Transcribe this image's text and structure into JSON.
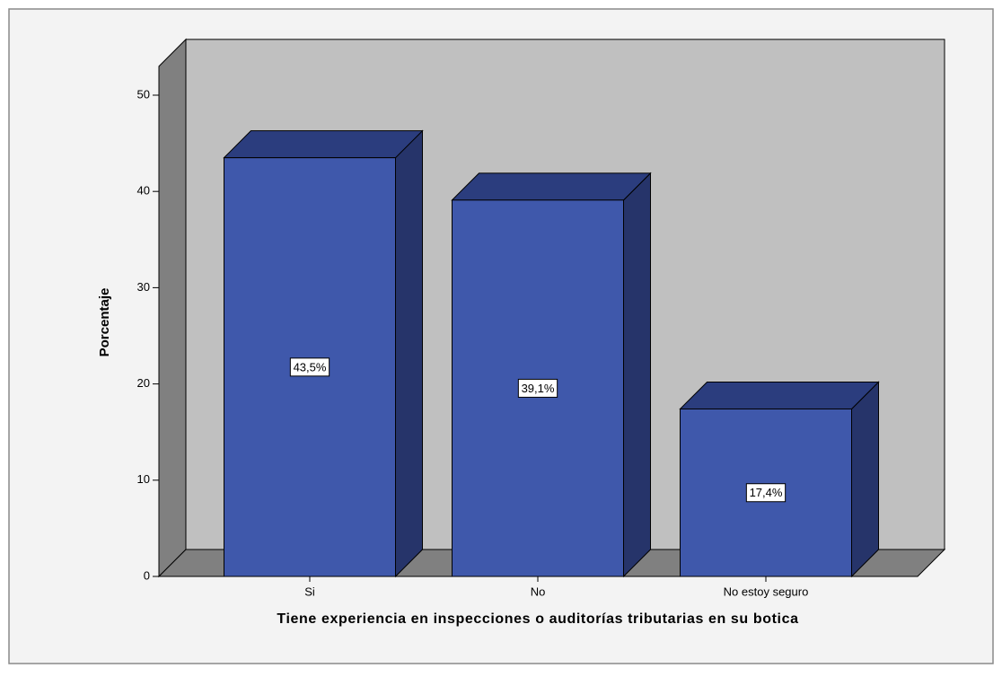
{
  "chart_data": {
    "type": "bar3d",
    "x_label": "Tiene experiencia en inspecciones o auditorías tributarias en su botica",
    "y_label": "Porcentaje",
    "categories": [
      "Si",
      "No",
      "No estoy seguro"
    ],
    "values": [
      43.5,
      39.1,
      17.4
    ],
    "value_labels": [
      "43,5%",
      "39,1%",
      "17,4%"
    ],
    "color": "#3f58ab",
    "ylim": [
      0,
      53
    ],
    "yticks": [
      0,
      10,
      20,
      30,
      40,
      50
    ]
  }
}
